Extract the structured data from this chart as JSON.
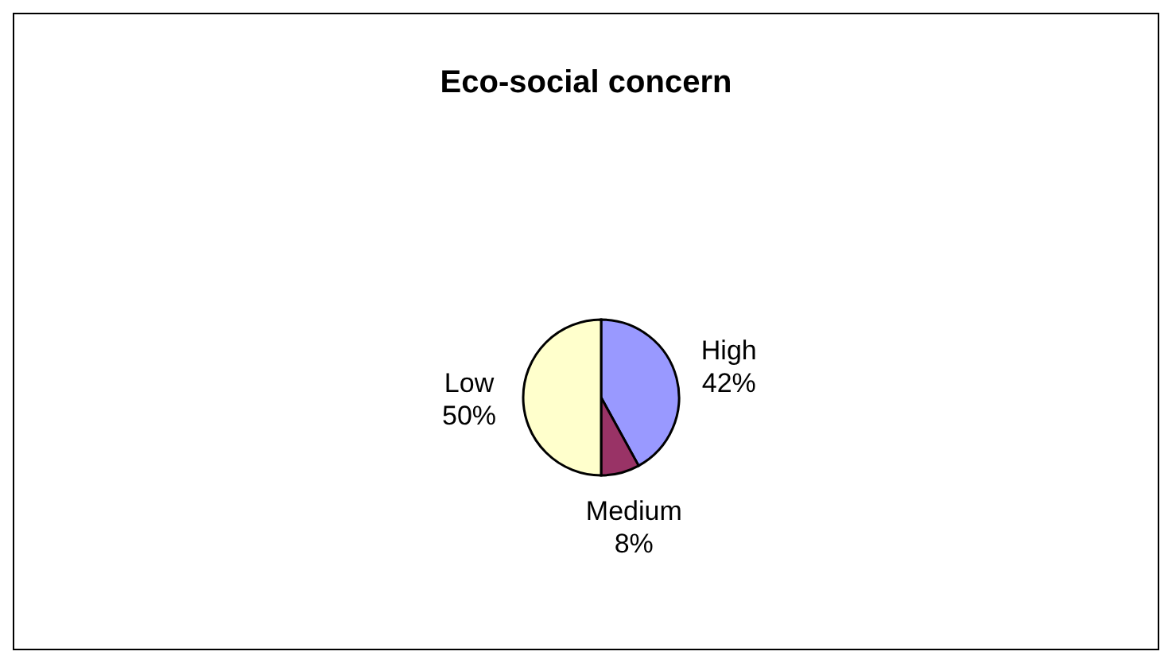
{
  "chart_data": {
    "type": "pie",
    "title": "Eco-social concern",
    "categories": [
      "High",
      "Medium",
      "Low"
    ],
    "values": [
      42,
      8,
      50
    ],
    "colors": [
      "#9999ff",
      "#993366",
      "#ffffcc"
    ],
    "value_labels": [
      "42%",
      "8%",
      "50%"
    ],
    "legend": false
  }
}
